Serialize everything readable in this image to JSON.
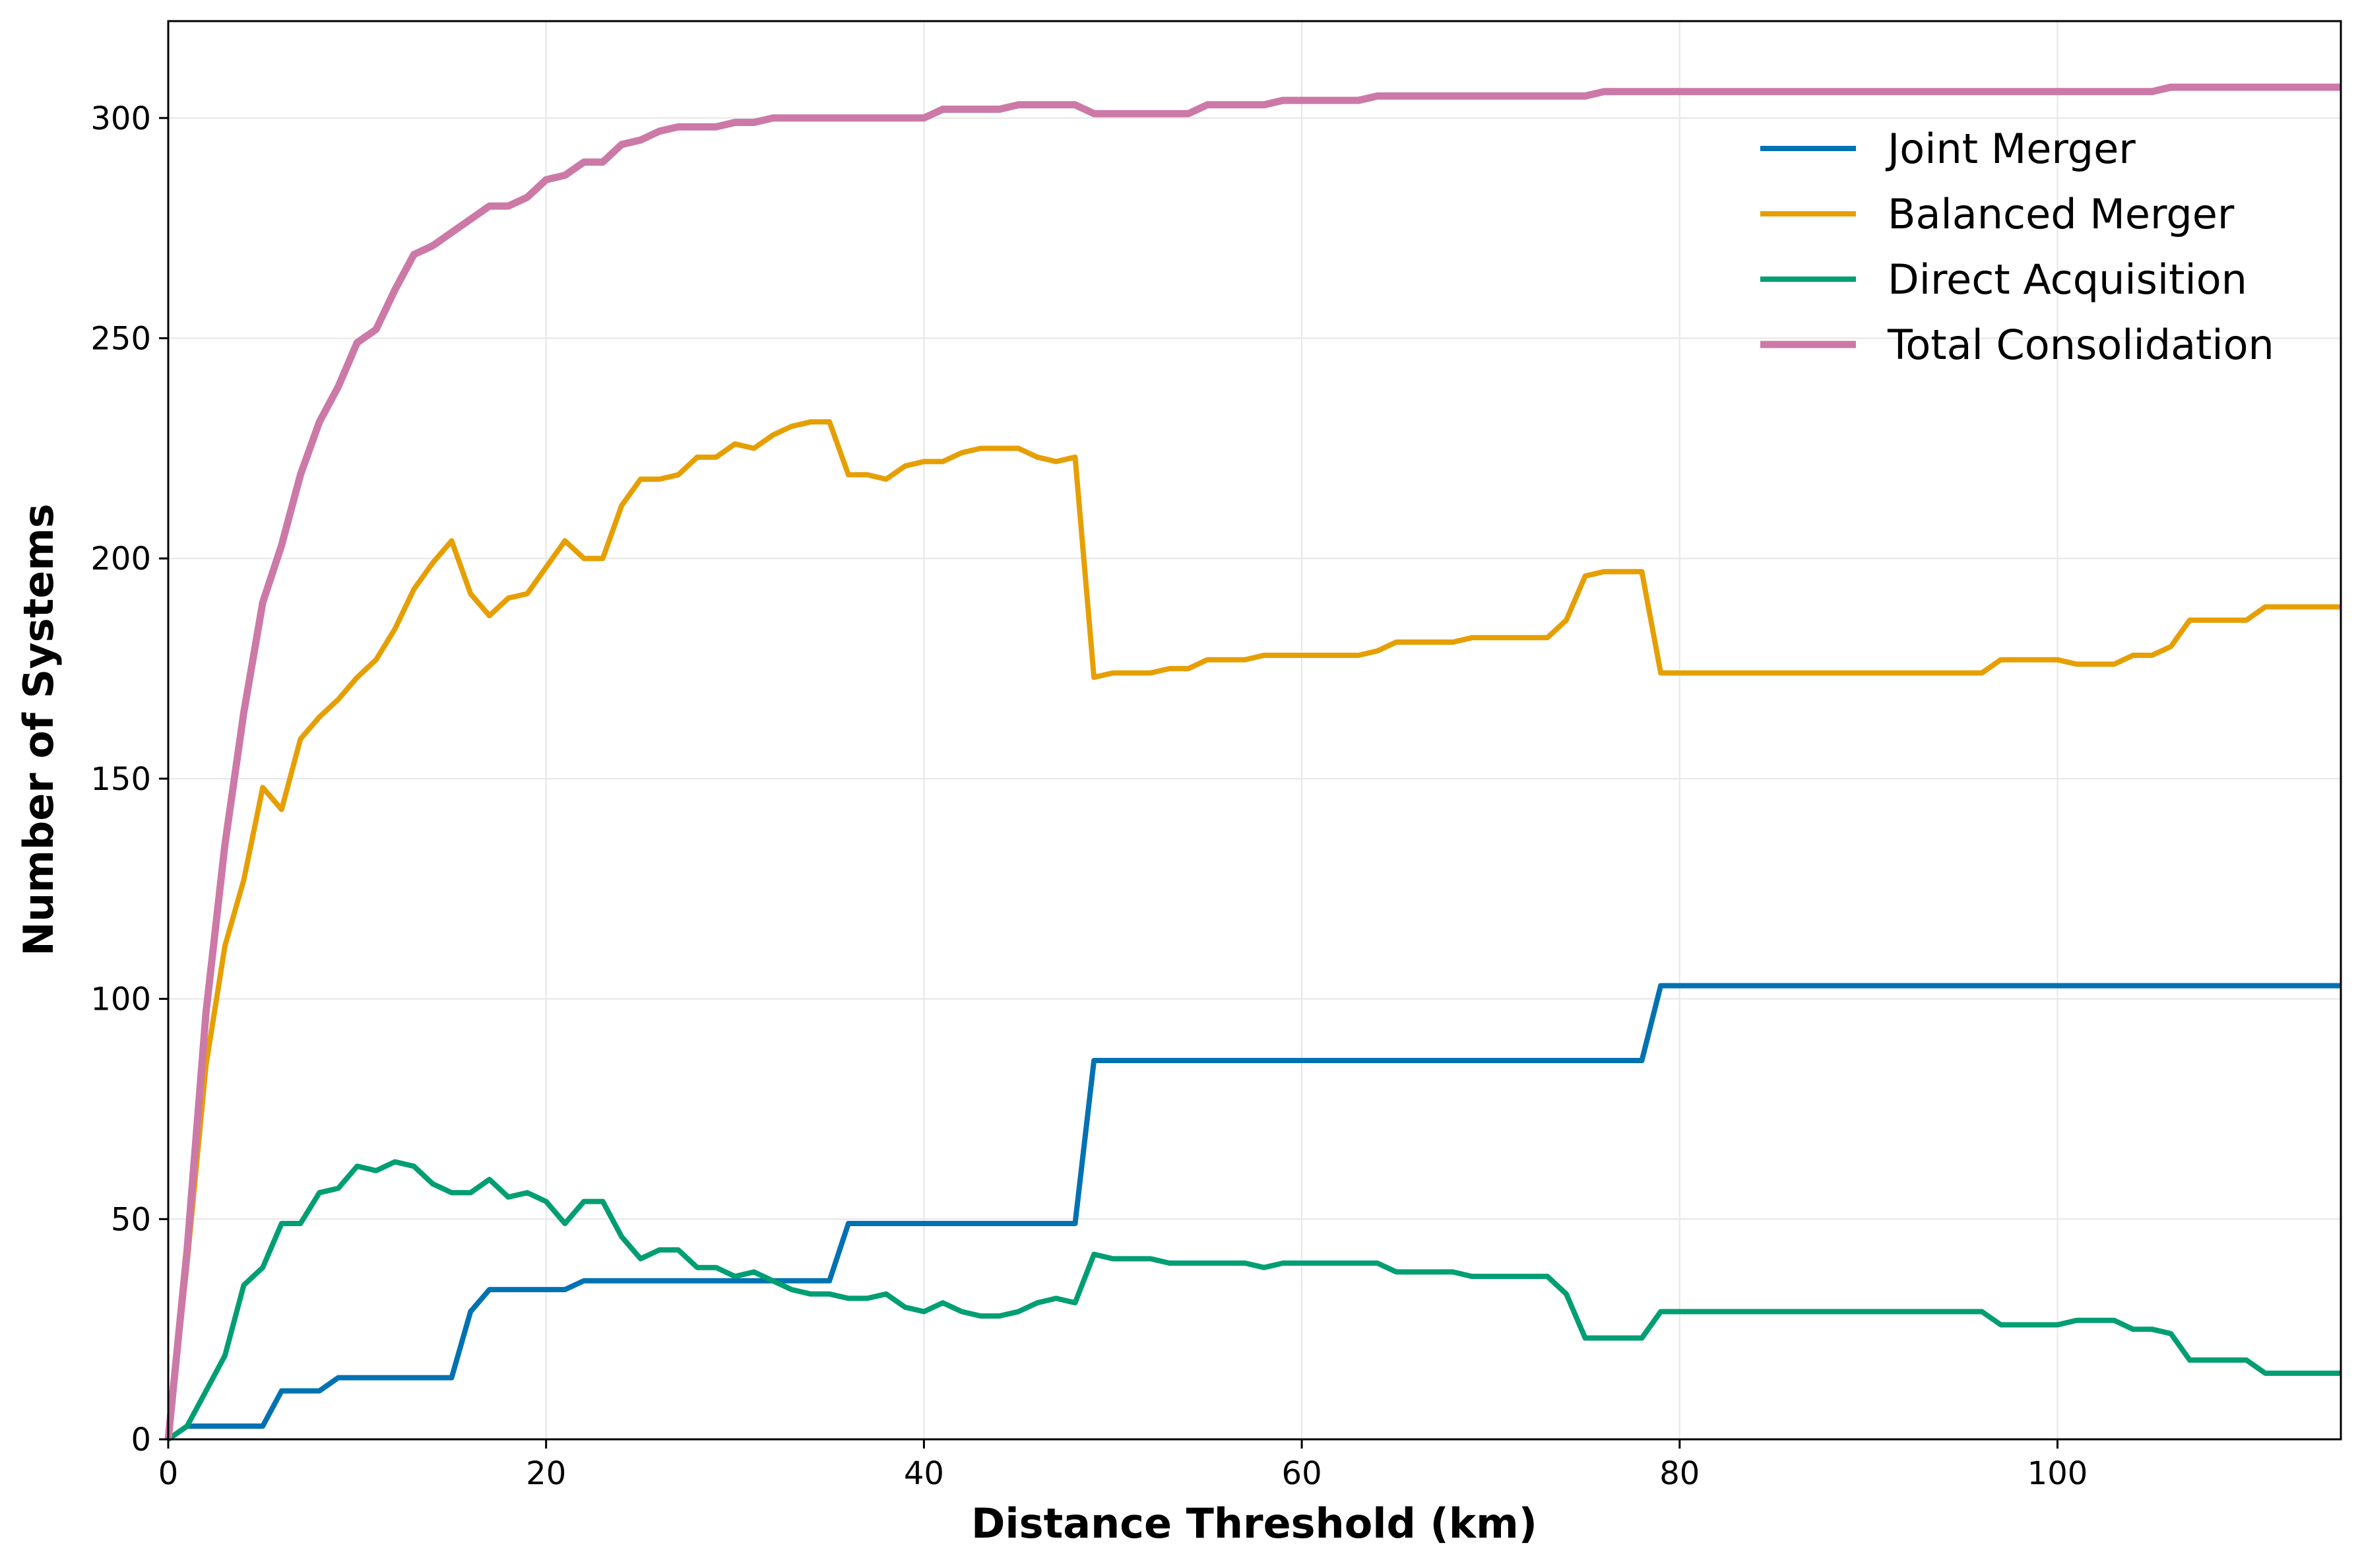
{
  "chart_data": {
    "type": "line",
    "title": "",
    "xlabel": "Distance Threshold (km)",
    "ylabel": "Number of Systems",
    "xlim": [
      0,
      115
    ],
    "ylim": [
      0,
      322
    ],
    "xticks": [
      0,
      20,
      40,
      60,
      80,
      100
    ],
    "yticks": [
      0,
      50,
      100,
      150,
      200,
      250,
      300
    ],
    "grid": true,
    "legend_position": "top-right",
    "x": [
      0,
      1,
      2,
      3,
      4,
      5,
      6,
      7,
      8,
      9,
      10,
      11,
      12,
      13,
      14,
      15,
      16,
      17,
      18,
      19,
      20,
      21,
      22,
      23,
      24,
      25,
      26,
      27,
      28,
      29,
      30,
      31,
      32,
      33,
      34,
      35,
      36,
      37,
      38,
      39,
      40,
      41,
      42,
      43,
      44,
      45,
      46,
      47,
      48,
      49,
      50,
      51,
      52,
      53,
      54,
      55,
      56,
      57,
      58,
      59,
      60,
      61,
      62,
      63,
      64,
      65,
      66,
      67,
      68,
      69,
      70,
      71,
      72,
      73,
      74,
      75,
      76,
      77,
      78,
      79,
      80,
      81,
      82,
      83,
      84,
      85,
      86,
      87,
      88,
      89,
      90,
      91,
      92,
      93,
      94,
      95,
      96,
      97,
      98,
      99,
      100,
      101,
      102,
      103,
      104,
      105,
      106,
      107,
      108,
      109,
      110,
      111,
      112,
      113,
      114,
      115
    ],
    "series": [
      {
        "name": "Joint Merger",
        "color": "#0072B2",
        "values": [
          0,
          3,
          3,
          3,
          3,
          3,
          11,
          11,
          11,
          14,
          14,
          14,
          14,
          14,
          14,
          14,
          29,
          34,
          34,
          34,
          34,
          34,
          36,
          36,
          36,
          36,
          36,
          36,
          36,
          36,
          36,
          36,
          36,
          36,
          36,
          36,
          49,
          49,
          49,
          49,
          49,
          49,
          49,
          49,
          49,
          49,
          49,
          49,
          49,
          86,
          86,
          86,
          86,
          86,
          86,
          86,
          86,
          86,
          86,
          86,
          86,
          86,
          86,
          86,
          86,
          86,
          86,
          86,
          86,
          86,
          86,
          86,
          86,
          86,
          86,
          86,
          86,
          86,
          86,
          103,
          103,
          103,
          103,
          103,
          103,
          103,
          103,
          103,
          103,
          103,
          103,
          103,
          103,
          103,
          103,
          103,
          103,
          103,
          103,
          103,
          103,
          103,
          103,
          103,
          103,
          103,
          103,
          103,
          103,
          103,
          103,
          103,
          103,
          103,
          103,
          103
        ]
      },
      {
        "name": "Balanced Merger",
        "color": "#E69F00",
        "values": [
          0,
          40,
          85,
          112,
          127,
          148,
          143,
          159,
          164,
          168,
          173,
          177,
          184,
          193,
          199,
          204,
          192,
          187,
          191,
          192,
          198,
          204,
          200,
          200,
          212,
          218,
          218,
          219,
          223,
          223,
          226,
          225,
          228,
          230,
          231,
          231,
          219,
          219,
          218,
          221,
          222,
          222,
          224,
          225,
          225,
          225,
          223,
          222,
          223,
          173,
          174,
          174,
          174,
          175,
          175,
          177,
          177,
          177,
          178,
          178,
          178,
          178,
          178,
          178,
          179,
          181,
          181,
          181,
          181,
          182,
          182,
          182,
          182,
          182,
          186,
          196,
          197,
          197,
          197,
          174,
          174,
          174,
          174,
          174,
          174,
          174,
          174,
          174,
          174,
          174,
          174,
          174,
          174,
          174,
          174,
          174,
          174,
          177,
          177,
          177,
          177,
          176,
          176,
          176,
          178,
          178,
          180,
          186,
          186,
          186,
          186,
          189,
          189,
          189,
          189,
          189
        ]
      },
      {
        "name": "Direct Acquisition",
        "color": "#009E73",
        "values": [
          0,
          3,
          11,
          19,
          35,
          39,
          49,
          49,
          56,
          57,
          62,
          61,
          63,
          62,
          58,
          56,
          56,
          59,
          55,
          56,
          54,
          49,
          54,
          54,
          46,
          41,
          43,
          43,
          39,
          39,
          37,
          38,
          36,
          34,
          33,
          33,
          32,
          32,
          33,
          30,
          29,
          31,
          29,
          28,
          28,
          29,
          31,
          32,
          31,
          42,
          41,
          41,
          41,
          40,
          40,
          40,
          40,
          40,
          39,
          40,
          40,
          40,
          40,
          40,
          40,
          38,
          38,
          38,
          38,
          37,
          37,
          37,
          37,
          37,
          33,
          23,
          23,
          23,
          23,
          29,
          29,
          29,
          29,
          29,
          29,
          29,
          29,
          29,
          29,
          29,
          29,
          29,
          29,
          29,
          29,
          29,
          29,
          26,
          26,
          26,
          26,
          27,
          27,
          27,
          25,
          25,
          24,
          18,
          18,
          18,
          18,
          15,
          15,
          15,
          15,
          15
        ]
      },
      {
        "name": "Total Consolidation",
        "color": "#CC79A7",
        "values": [
          0,
          43,
          97,
          135,
          165,
          190,
          203,
          219,
          231,
          239,
          249,
          252,
          261,
          269,
          271,
          274,
          277,
          280,
          280,
          282,
          286,
          287,
          290,
          290,
          294,
          295,
          297,
          298,
          298,
          298,
          299,
          299,
          300,
          300,
          300,
          300,
          300,
          300,
          300,
          300,
          300,
          302,
          302,
          302,
          302,
          303,
          303,
          303,
          303,
          301,
          301,
          301,
          301,
          301,
          301,
          303,
          303,
          303,
          303,
          304,
          304,
          304,
          304,
          304,
          305,
          305,
          305,
          305,
          305,
          305,
          305,
          305,
          305,
          305,
          305,
          305,
          306,
          306,
          306,
          306,
          306,
          306,
          306,
          306,
          306,
          306,
          306,
          306,
          306,
          306,
          306,
          306,
          306,
          306,
          306,
          306,
          306,
          306,
          306,
          306,
          306,
          306,
          306,
          306,
          306,
          306,
          307,
          307,
          307,
          307,
          307,
          307,
          307,
          307,
          307,
          307
        ]
      }
    ]
  }
}
